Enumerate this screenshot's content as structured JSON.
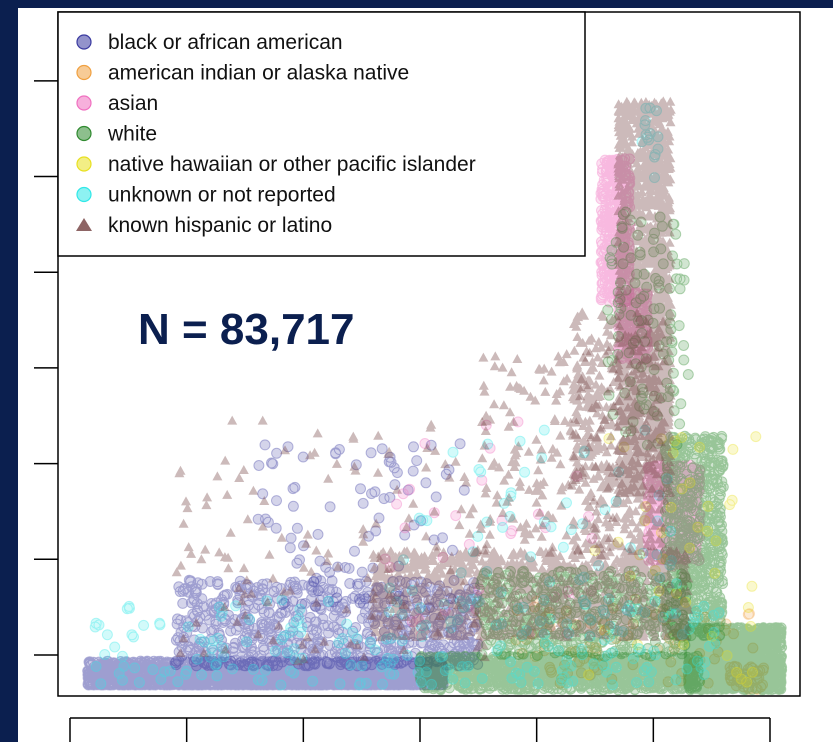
{
  "chart_data": {
    "type": "scatter",
    "title": "",
    "xlabel": "",
    "ylabel": "",
    "xlim": [
      0,
      6
    ],
    "ylim": [
      0,
      6.5
    ],
    "x_ticks": [
      0,
      1,
      2,
      3,
      4,
      5,
      6
    ],
    "y_ticks": [
      0,
      1,
      2,
      3,
      4,
      5,
      6
    ],
    "tick_labels_shown": false,
    "grid": false,
    "legend": "top-left",
    "annotation": {
      "text": "N = 83,717",
      "color": "#0b1f4f"
    },
    "series": [
      {
        "name": "black or african american",
        "marker": "circle",
        "color": "#3a3aa0",
        "clusters": [
          {
            "x": [
              0.15,
              3.2
            ],
            "y": [
              0.0,
              0.25
            ],
            "n": 2600,
            "skew": 1.7
          },
          {
            "x": [
              0.9,
              3.5
            ],
            "y": [
              0.2,
              1.1
            ],
            "n": 700,
            "skew": 1.3
          },
          {
            "x": [
              1.6,
              3.4
            ],
            "y": [
              0.8,
              2.6
            ],
            "n": 90,
            "skew": 1.0
          }
        ]
      },
      {
        "name": "american indian or alaska native",
        "marker": "circle",
        "color": "#f0a040",
        "clusters": [
          {
            "x": [
              3.8,
              5.9
            ],
            "y": [
              0.0,
              0.9
            ],
            "n": 80,
            "skew": 1.0
          },
          {
            "x": [
              5.65,
              5.95
            ],
            "y": [
              -0.05,
              0.2
            ],
            "n": 45,
            "skew": 1.0
          }
        ]
      },
      {
        "name": "asian",
        "marker": "circle",
        "color": "#f070c0",
        "clusters": [
          {
            "x": [
              4.55,
              4.8
            ],
            "y": [
              4.0,
              5.5
            ],
            "n": 420,
            "skew": 1.0
          },
          {
            "x": [
              4.7,
              4.95
            ],
            "y": [
              3.4,
              4.1
            ],
            "n": 200,
            "skew": 1.0
          },
          {
            "x": [
              4.95,
              5.4
            ],
            "y": [
              1.3,
              2.3
            ],
            "n": 450,
            "skew": 1.0
          },
          {
            "x": [
              2.7,
              4.5
            ],
            "y": [
              0.5,
              2.8
            ],
            "n": 35,
            "skew": 1.0
          }
        ]
      },
      {
        "name": "white",
        "marker": "circle",
        "color": "#2f8a2f",
        "clusters": [
          {
            "x": [
              3.0,
              5.4
            ],
            "y": [
              -0.05,
              0.3
            ],
            "n": 1400,
            "skew": 0.9
          },
          {
            "x": [
              5.3,
              6.1
            ],
            "y": [
              -0.05,
              0.6
            ],
            "n": 1600,
            "skew": 1.0
          },
          {
            "x": [
              5.1,
              5.6
            ],
            "y": [
              0.5,
              2.6
            ],
            "n": 700,
            "skew": 1.0
          },
          {
            "x": [
              3.5,
              5.3
            ],
            "y": [
              0.3,
              1.2
            ],
            "n": 500,
            "skew": 1.0
          },
          {
            "x": [
              4.6,
              5.3
            ],
            "y": [
              2.5,
              5.0
            ],
            "n": 120,
            "skew": 1.0
          }
        ]
      },
      {
        "name": "native hawaiian or other pacific islander",
        "marker": "circle",
        "color": "#e8e020",
        "clusters": [
          {
            "x": [
              4.4,
              5.9
            ],
            "y": [
              0.0,
              2.6
            ],
            "n": 45,
            "skew": 1.0
          }
        ]
      },
      {
        "name": "unknown or not reported",
        "marker": "circle",
        "color": "#30e8e8",
        "clusters": [
          {
            "x": [
              0.2,
              5.6
            ],
            "y": [
              0.0,
              0.9
            ],
            "n": 220,
            "skew": 1.2
          },
          {
            "x": [
              2.6,
              5.2
            ],
            "y": [
              0.7,
              2.7
            ],
            "n": 60,
            "skew": 1.0
          },
          {
            "x": [
              4.9,
              5.05
            ],
            "y": [
              5.3,
              6.1
            ],
            "n": 15,
            "skew": 1.0
          }
        ]
      },
      {
        "name": "known hispanic or latino",
        "marker": "triangle",
        "color": "#7a4a4a",
        "clusters": [
          {
            "x": [
              4.7,
              5.15
            ],
            "y": [
              2.0,
              6.1
            ],
            "n": 1500,
            "skew": 1.0
          },
          {
            "x": [
              4.3,
              5.1
            ],
            "y": [
              1.4,
              3.9
            ],
            "n": 450,
            "skew": 1.0
          },
          {
            "x": [
              2.6,
              5.3
            ],
            "y": [
              0.5,
              1.4
            ],
            "n": 1100,
            "skew": 1.0
          },
          {
            "x": [
              0.9,
              3.6
            ],
            "y": [
              0.2,
              2.8
            ],
            "n": 140,
            "skew": 1.0
          },
          {
            "x": [
              3.5,
              4.7
            ],
            "y": [
              1.3,
              3.5
            ],
            "n": 160,
            "skew": 1.0
          }
        ]
      }
    ]
  }
}
